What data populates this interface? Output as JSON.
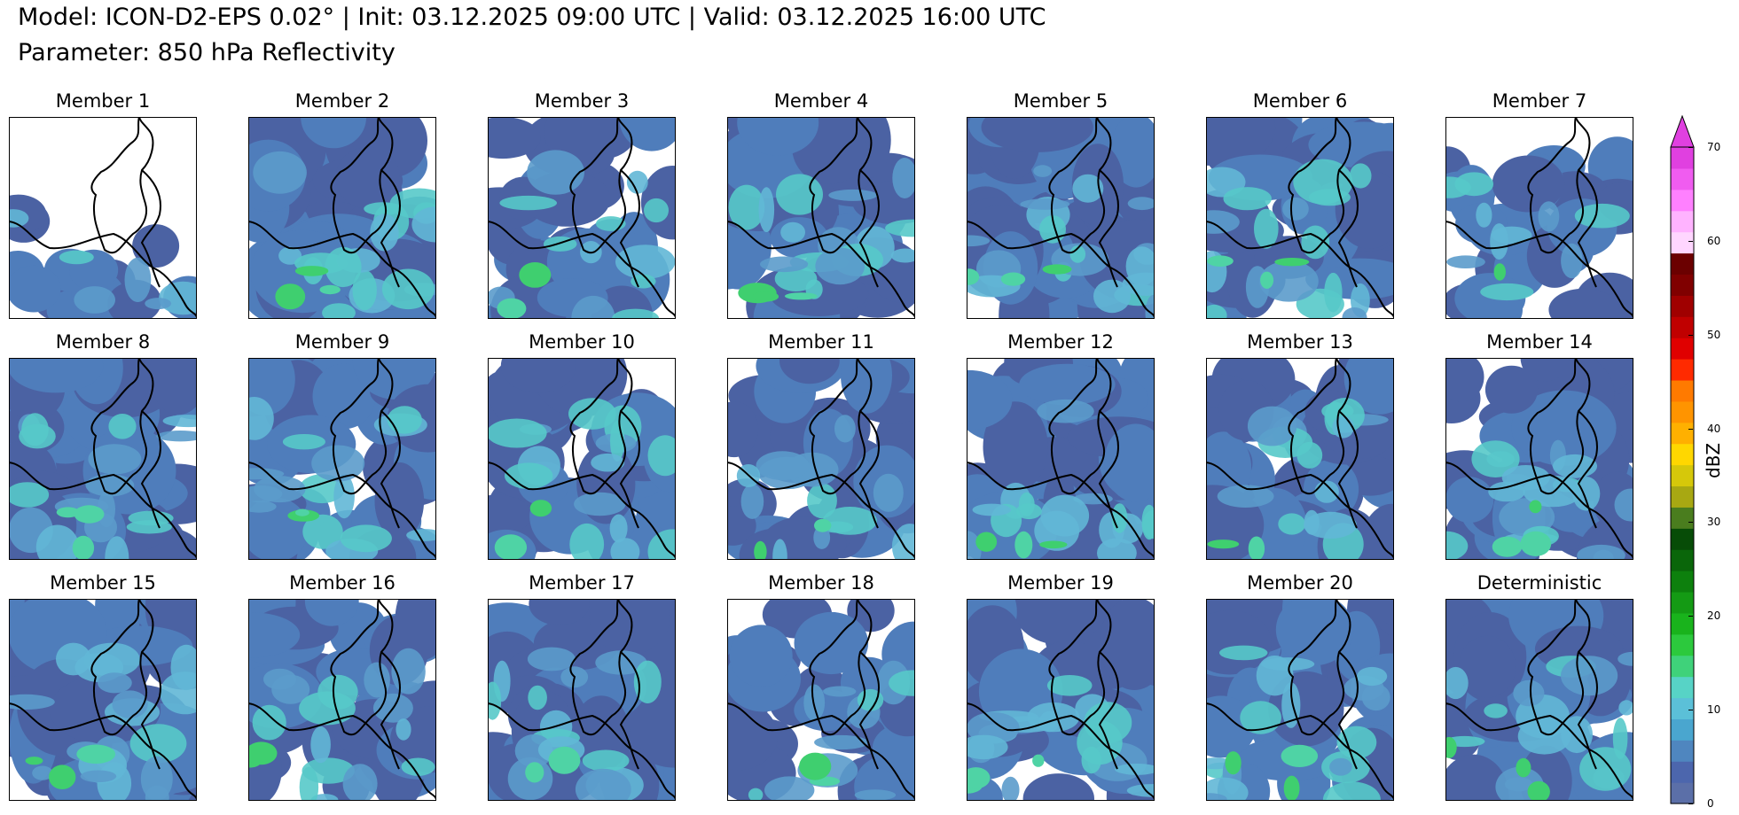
{
  "header": {
    "line1": "Model: ICON-D2-EPS 0.02° | Init: 03.12.2025 09:00 UTC | Valid: 03.12.2025 16:00 UTC",
    "line2": "Parameter: 850 hPa Reflectivity"
  },
  "panels": [
    {
      "title": "Member 1",
      "coverage": 0.15
    },
    {
      "title": "Member 2",
      "coverage": 0.95
    },
    {
      "title": "Member 3",
      "coverage": 0.6
    },
    {
      "title": "Member 4",
      "coverage": 0.85
    },
    {
      "title": "Member 5",
      "coverage": 0.97
    },
    {
      "title": "Member 6",
      "coverage": 0.95
    },
    {
      "title": "Member 7",
      "coverage": 0.45
    },
    {
      "title": "Member 8",
      "coverage": 0.9
    },
    {
      "title": "Member 9",
      "coverage": 0.8
    },
    {
      "title": "Member 10",
      "coverage": 0.82
    },
    {
      "title": "Member 11",
      "coverage": 0.65
    },
    {
      "title": "Member 12",
      "coverage": 0.88
    },
    {
      "title": "Member 13",
      "coverage": 0.8
    },
    {
      "title": "Member 14",
      "coverage": 0.85
    },
    {
      "title": "Member 15",
      "coverage": 0.98
    },
    {
      "title": "Member 16",
      "coverage": 0.75
    },
    {
      "title": "Member 17",
      "coverage": 0.8
    },
    {
      "title": "Member 18",
      "coverage": 0.5
    },
    {
      "title": "Member 19",
      "coverage": 0.9
    },
    {
      "title": "Member 20",
      "coverage": 0.92
    },
    {
      "title": "Deterministic",
      "coverage": 0.88
    }
  ],
  "colorbar": {
    "label": "dBZ",
    "ticks": [
      "0",
      "10",
      "20",
      "30",
      "40",
      "50",
      "60",
      "70"
    ],
    "colors": [
      "#5b6fa8",
      "#4c66ad",
      "#4f86bf",
      "#4aa6cf",
      "#5bc0d8",
      "#57d3c6",
      "#3fd27a",
      "#2cc93d",
      "#19b31c",
      "#149a14",
      "#0d800d",
      "#0a660a",
      "#074c07",
      "#4a7d1e",
      "#a8a812",
      "#d6c80a",
      "#ffd700",
      "#ffb000",
      "#ff9400",
      "#ff7a00",
      "#ff2a00",
      "#e00000",
      "#c00000",
      "#a00000",
      "#800000",
      "#6b0000",
      "#ffd6ff",
      "#ffb3ff",
      "#ff80ff",
      "#f05cf0",
      "#e040e0"
    ]
  }
}
